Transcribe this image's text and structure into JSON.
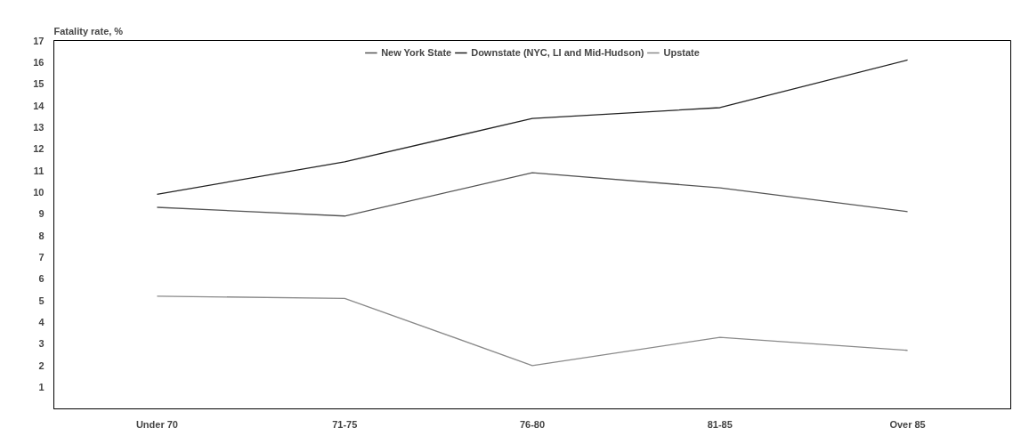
{
  "chart_data": {
    "type": "line",
    "ylabel": "Fatality rate, %",
    "categories": [
      "Under 70",
      "71-75",
      "76-80",
      "81-85",
      "Over 85"
    ],
    "series": [
      {
        "name": "New York State",
        "color": "#555555",
        "values": [
          9.3,
          8.9,
          10.9,
          10.2,
          9.1
        ]
      },
      {
        "name": "Downstate (NYC, LI and Mid-Hudson)",
        "color": "#222222",
        "values": [
          9.9,
          11.4,
          13.4,
          13.9,
          16.1
        ]
      },
      {
        "name": "Upstate",
        "color": "#8a8a8a",
        "values": [
          5.2,
          5.1,
          2.0,
          3.3,
          2.7
        ]
      }
    ],
    "ylim": [
      0,
      17
    ],
    "yticks": [
      1,
      2,
      3,
      4,
      5,
      6,
      7,
      8,
      9,
      10,
      11,
      12,
      13,
      14,
      15,
      16,
      17
    ],
    "grid": false,
    "legend": "top",
    "marker": "none",
    "line_style": "solid"
  }
}
